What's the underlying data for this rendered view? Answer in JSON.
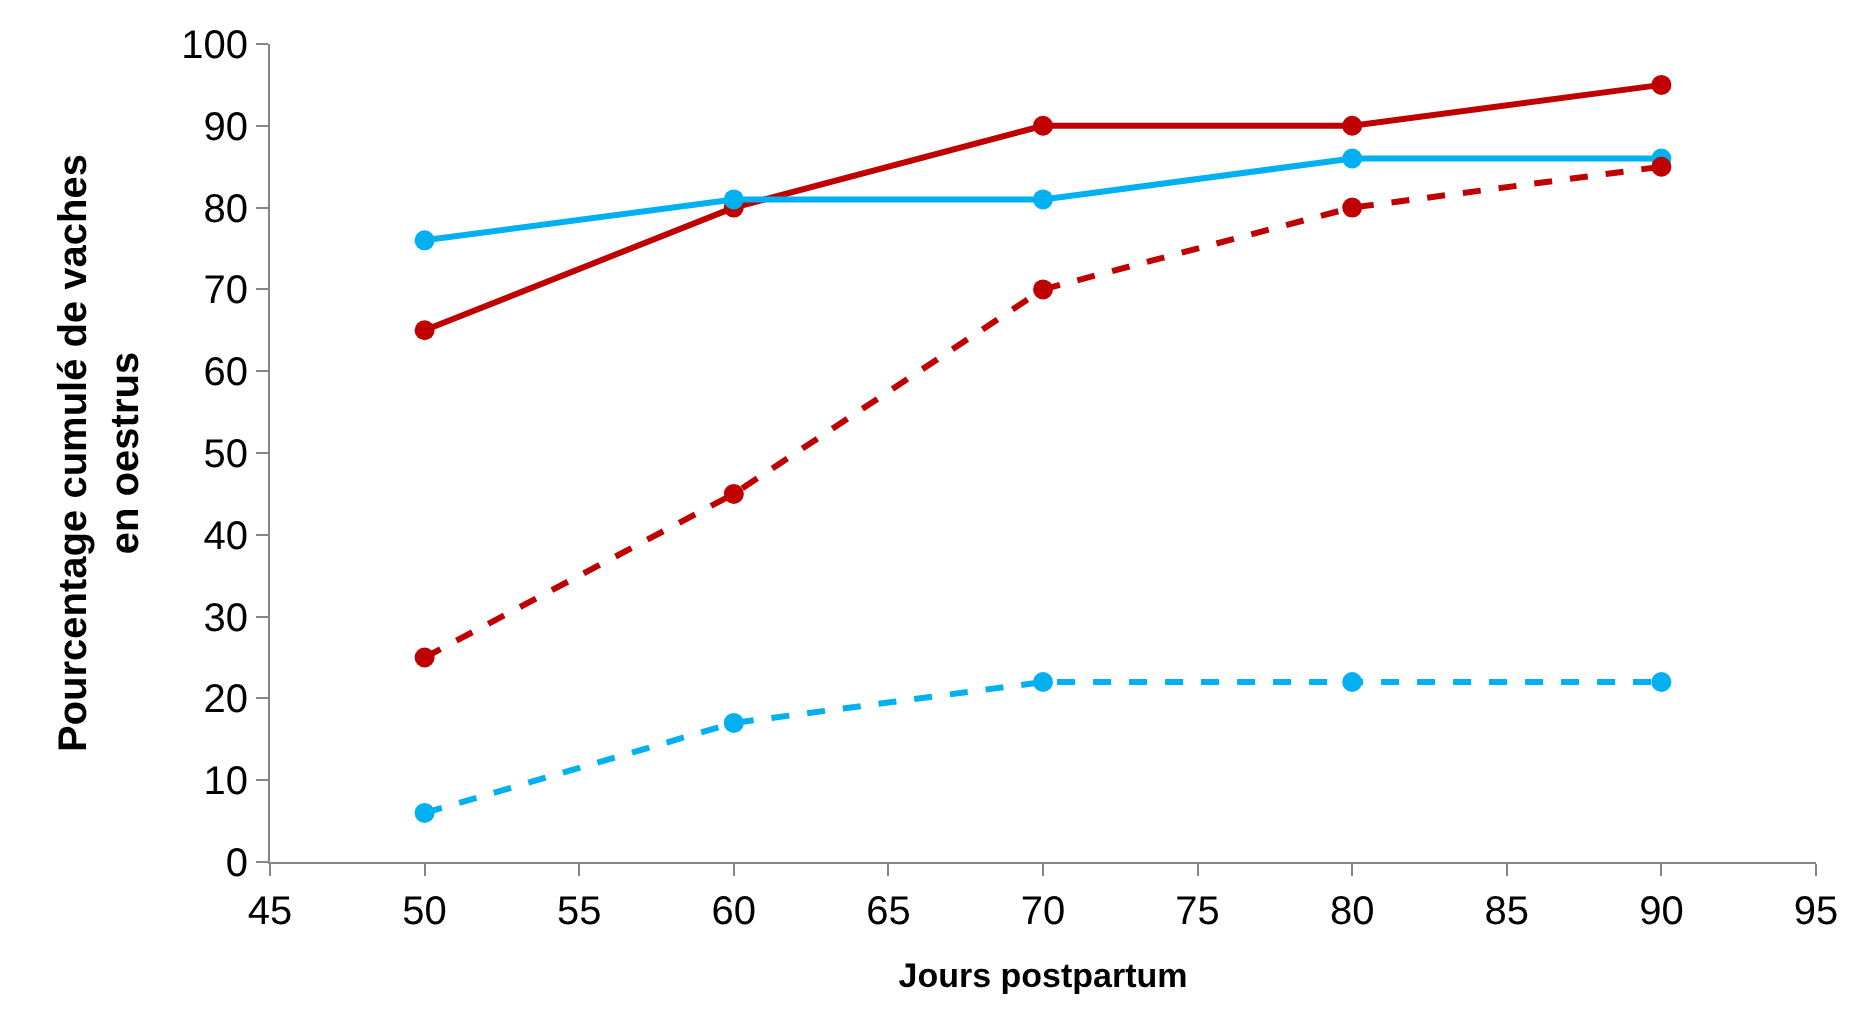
{
  "chart_data": {
    "type": "line",
    "xlabel": "Jours postpartum",
    "ylabel": "Pourcentage cumulé de vaches\nen oestrus",
    "x": [
      50,
      60,
      70,
      80,
      90
    ],
    "series": [
      {
        "color": "#c00000",
        "line_style": "solid",
        "values": [
          65,
          80,
          90,
          90,
          95
        ]
      },
      {
        "color": "#00b0f0",
        "line_style": "solid",
        "values": [
          76,
          81,
          81,
          86,
          86
        ]
      },
      {
        "color": "#c00000",
        "line_style": "dashed",
        "values": [
          25,
          45,
          70,
          80,
          85
        ]
      },
      {
        "color": "#00b0f0",
        "line_style": "dashed",
        "values": [
          6,
          17,
          22,
          22,
          22
        ]
      }
    ],
    "xlim": [
      45,
      95
    ],
    "xticks": [
      45,
      50,
      55,
      60,
      65,
      70,
      75,
      80,
      85,
      90,
      95
    ],
    "ylim": [
      0,
      100
    ],
    "yticks": [
      0,
      10,
      20,
      30,
      40,
      50,
      60,
      70,
      80,
      90,
      100
    ],
    "marker": "circle"
  }
}
